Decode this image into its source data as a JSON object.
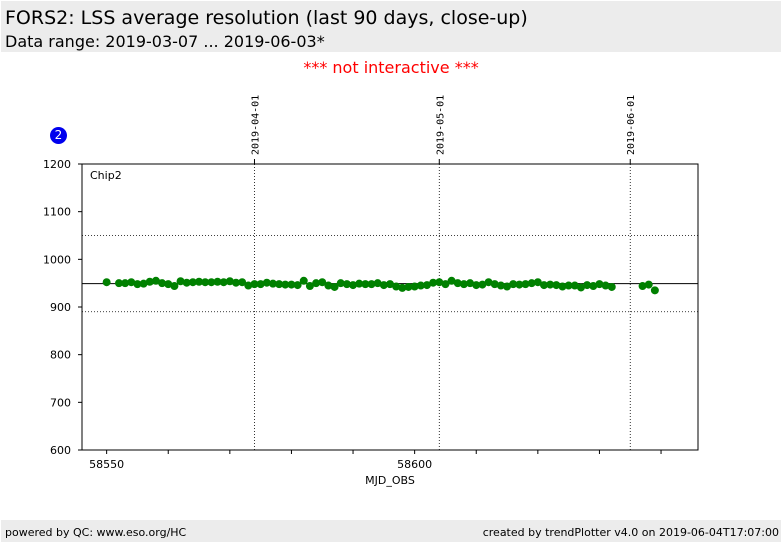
{
  "header": {
    "title": "FORS2: LSS average resolution (last 90 days, close-up)",
    "subtitle": "Data range: 2019-03-07 ... 2019-06-03*"
  },
  "notice": "*** not interactive ***",
  "badge": "2",
  "footer": {
    "left": "powered by QC: www.eso.org/HC",
    "right": "created by trendPlotter v4.0 on 2019-06-04T17:07:00"
  },
  "chart_data": {
    "type": "scatter",
    "panel_label": "Chip2",
    "xlabel": "MJD_OBS",
    "ylabel": "",
    "xlim": [
      58546,
      58646
    ],
    "ylim": [
      600,
      1200
    ],
    "x_ticks": [
      58550,
      58600
    ],
    "y_ticks": [
      600,
      700,
      800,
      900,
      1000,
      1100,
      1200
    ],
    "date_markers": [
      {
        "label": "2019-04-01",
        "mjd": 58574
      },
      {
        "label": "2019-05-01",
        "mjd": 58604
      },
      {
        "label": "2019-06-01",
        "mjd": 58635
      }
    ],
    "reference_lines": {
      "mean": 949,
      "upper": 1050,
      "lower": 890
    },
    "marker_color": "#008000",
    "series": [
      {
        "x": [
          58550,
          58552,
          58553,
          58554,
          58555,
          58556,
          58557,
          58558,
          58559,
          58560,
          58561,
          58562,
          58563,
          58564,
          58565,
          58566,
          58567,
          58568,
          58569,
          58570,
          58571,
          58572,
          58573,
          58574,
          58575,
          58576,
          58577,
          58578,
          58579,
          58580,
          58581,
          58582,
          58583,
          58584,
          58585,
          58586,
          58587,
          58588,
          58589,
          58590,
          58591,
          58592,
          58593,
          58594,
          58595,
          58596,
          58597,
          58598,
          58599,
          58600,
          58601,
          58602,
          58603,
          58604,
          58605,
          58606,
          58607,
          58608,
          58609,
          58610,
          58611,
          58612,
          58613,
          58614,
          58615,
          58616,
          58617,
          58618,
          58619,
          58620,
          58621,
          58622,
          58623,
          58624,
          58625,
          58626,
          58627,
          58628,
          58629,
          58630,
          58631,
          58632,
          58637,
          58638,
          58639
        ],
        "y": [
          952,
          950,
          950,
          952,
          948,
          949,
          953,
          955,
          950,
          948,
          944,
          954,
          951,
          952,
          953,
          952,
          952,
          953,
          952,
          954,
          951,
          952,
          945,
          948,
          948,
          951,
          949,
          948,
          947,
          947,
          946,
          955,
          944,
          950,
          952,
          945,
          942,
          950,
          948,
          946,
          949,
          948,
          948,
          950,
          946,
          948,
          943,
          940,
          942,
          943,
          945,
          946,
          951,
          952,
          948,
          955,
          950,
          948,
          950,
          946,
          947,
          952,
          948,
          945,
          943,
          948,
          947,
          948,
          950,
          952,
          946,
          947,
          946,
          943,
          945,
          945,
          941,
          946,
          944,
          948,
          945,
          942,
          944,
          947,
          935
        ]
      }
    ]
  }
}
